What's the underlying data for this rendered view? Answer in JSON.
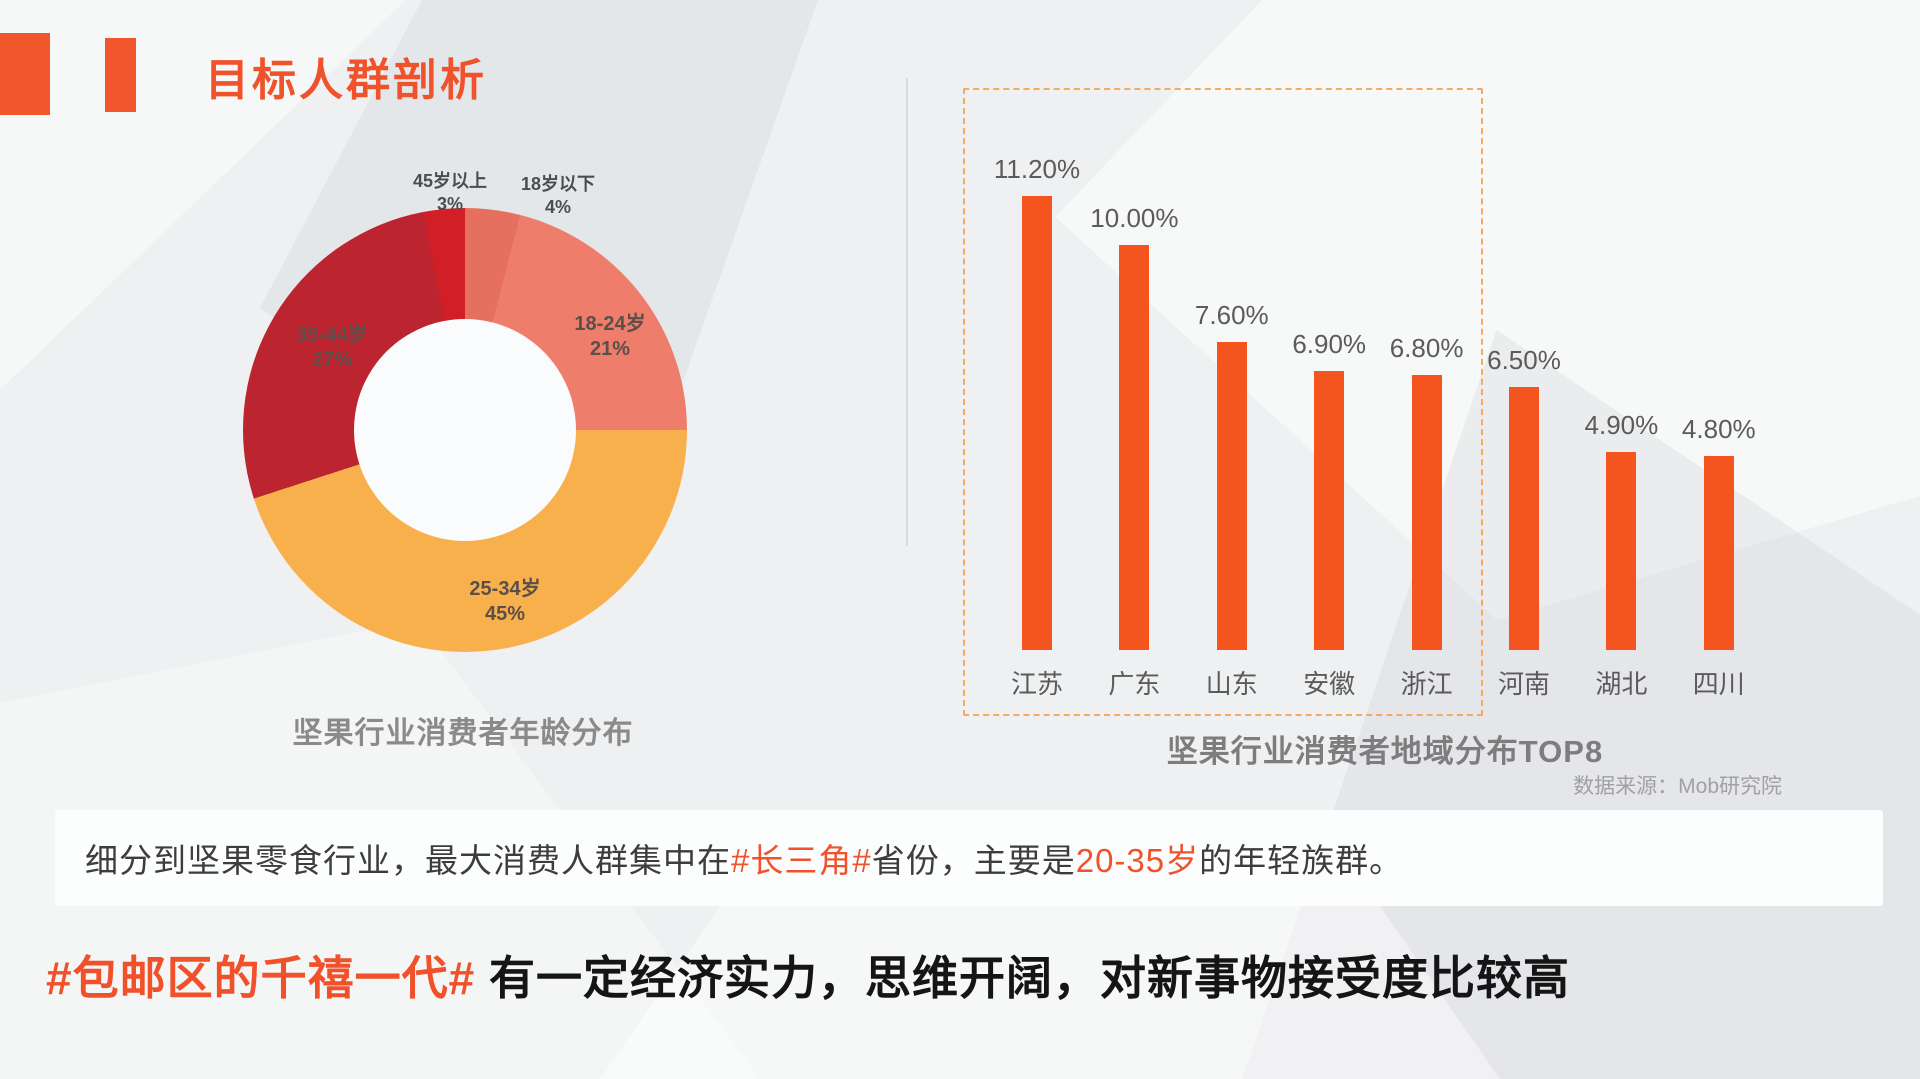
{
  "slide": {
    "title": "目标人群剖析",
    "insight_line": [
      {
        "text": "细分到坚果零食行业，最大消费人群集中在",
        "highlight": false
      },
      {
        "text": "#长三角#",
        "highlight": true
      },
      {
        "text": "省份，主要是",
        "highlight": false
      },
      {
        "text": "20-35岁",
        "highlight": true
      },
      {
        "text": "的年轻族群。",
        "highlight": false
      }
    ],
    "headline": {
      "tag": "#包邮区的千禧一代#",
      "rest": " 有一定经济实力，思维开阔，对新事物接受度比较高"
    }
  },
  "colors": {
    "accent_orange": "#f0522c",
    "bar_orange": "#f4541e",
    "dashed_box": "#f3aa63",
    "pie_under18": "#e5705f",
    "pie_18_24": "#ee7e6b",
    "pie_25_34": "#f8b04d",
    "pie_35_44": "#bc2430",
    "pie_45_plus": "#d21f27"
  },
  "chart_data": [
    {
      "type": "pie",
      "donut": true,
      "title": "坚果行业消费者年龄分布",
      "start_angle_deg": 0,
      "direction": "clockwise",
      "segments": [
        {
          "label": "18岁以下",
          "value": 4,
          "pct": "4%",
          "color": "#e5705f",
          "label_position": "outside"
        },
        {
          "label": "18-24岁",
          "value": 21,
          "pct": "21%",
          "color": "#ee7e6b",
          "label_position": "inside"
        },
        {
          "label": "25-34岁",
          "value": 45,
          "pct": "45%",
          "color": "#f8b04d",
          "label_position": "inside"
        },
        {
          "label": "35-44岁",
          "value": 27,
          "pct": "27%",
          "color": "#bc2430",
          "label_position": "inside"
        },
        {
          "label": "45岁以上",
          "value": 3,
          "pct": "3%",
          "color": "#d21f27",
          "label_position": "outside"
        }
      ]
    },
    {
      "type": "bar",
      "title": "坚果行业消费者地域分布TOP8",
      "source": "数据来源：Mob研究院",
      "categories": [
        "江苏",
        "广东",
        "山东",
        "安徽",
        "浙江",
        "河南",
        "湖北",
        "四川"
      ],
      "values": [
        11.2,
        10.0,
        7.6,
        6.9,
        6.8,
        6.5,
        4.9,
        4.8
      ],
      "value_labels": [
        "11.20%",
        "10.00%",
        "7.60%",
        "6.90%",
        "6.80%",
        "6.50%",
        "4.90%",
        "4.80%"
      ],
      "bar_color": "#f4541e",
      "ylim": [
        0,
        12
      ],
      "grid": false,
      "legend": false,
      "highlight_box_categories": [
        "江苏",
        "广东",
        "山东",
        "安徽",
        "浙江"
      ]
    }
  ]
}
